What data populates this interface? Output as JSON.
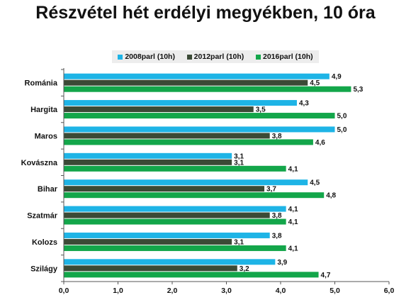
{
  "chart_data": {
    "type": "bar",
    "orientation": "horizontal",
    "title": "Részvétel hét erdélyi megyékben, 10 óra",
    "categories": [
      "Románia",
      "Hargita",
      "Maros",
      "Kovászna",
      "Bihar",
      "Szatmár",
      "Kolozs",
      "Szilágy"
    ],
    "series": [
      {
        "name": "2008parl (10h)",
        "color": "#1eb4e6",
        "values": [
          4.9,
          4.3,
          5.0,
          3.1,
          4.5,
          4.1,
          3.8,
          3.9
        ],
        "labels": [
          "4,9",
          "4,3",
          "5,0",
          "3,1",
          "4,5",
          "4,1",
          "3,8",
          "3,9"
        ]
      },
      {
        "name": "2012parl (10h)",
        "color": "#3b4a36",
        "values": [
          4.5,
          3.5,
          3.8,
          3.1,
          3.7,
          3.8,
          3.1,
          3.2
        ],
        "labels": [
          "4,5",
          "3,5",
          "3,8",
          "3,1",
          "3,7",
          "3,8",
          "3,1",
          "3,2"
        ]
      },
      {
        "name": "2016parl (10h)",
        "color": "#13a64a",
        "values": [
          5.3,
          5.0,
          4.6,
          4.1,
          4.8,
          4.1,
          4.1,
          4.7
        ],
        "labels": [
          "5,3",
          "5,0",
          "4,6",
          "4,1",
          "4,8",
          "4,1",
          "4,1",
          "4,7"
        ]
      }
    ],
    "xlim": [
      0,
      6
    ],
    "xticks": [
      0,
      1,
      2,
      3,
      4,
      5,
      6
    ],
    "xtick_labels": [
      "0,0",
      "1,0",
      "2,0",
      "3,0",
      "4,0",
      "5,0",
      "6,0"
    ],
    "xlabel": "",
    "ylabel": "",
    "grid": false,
    "legend_position": "top"
  }
}
